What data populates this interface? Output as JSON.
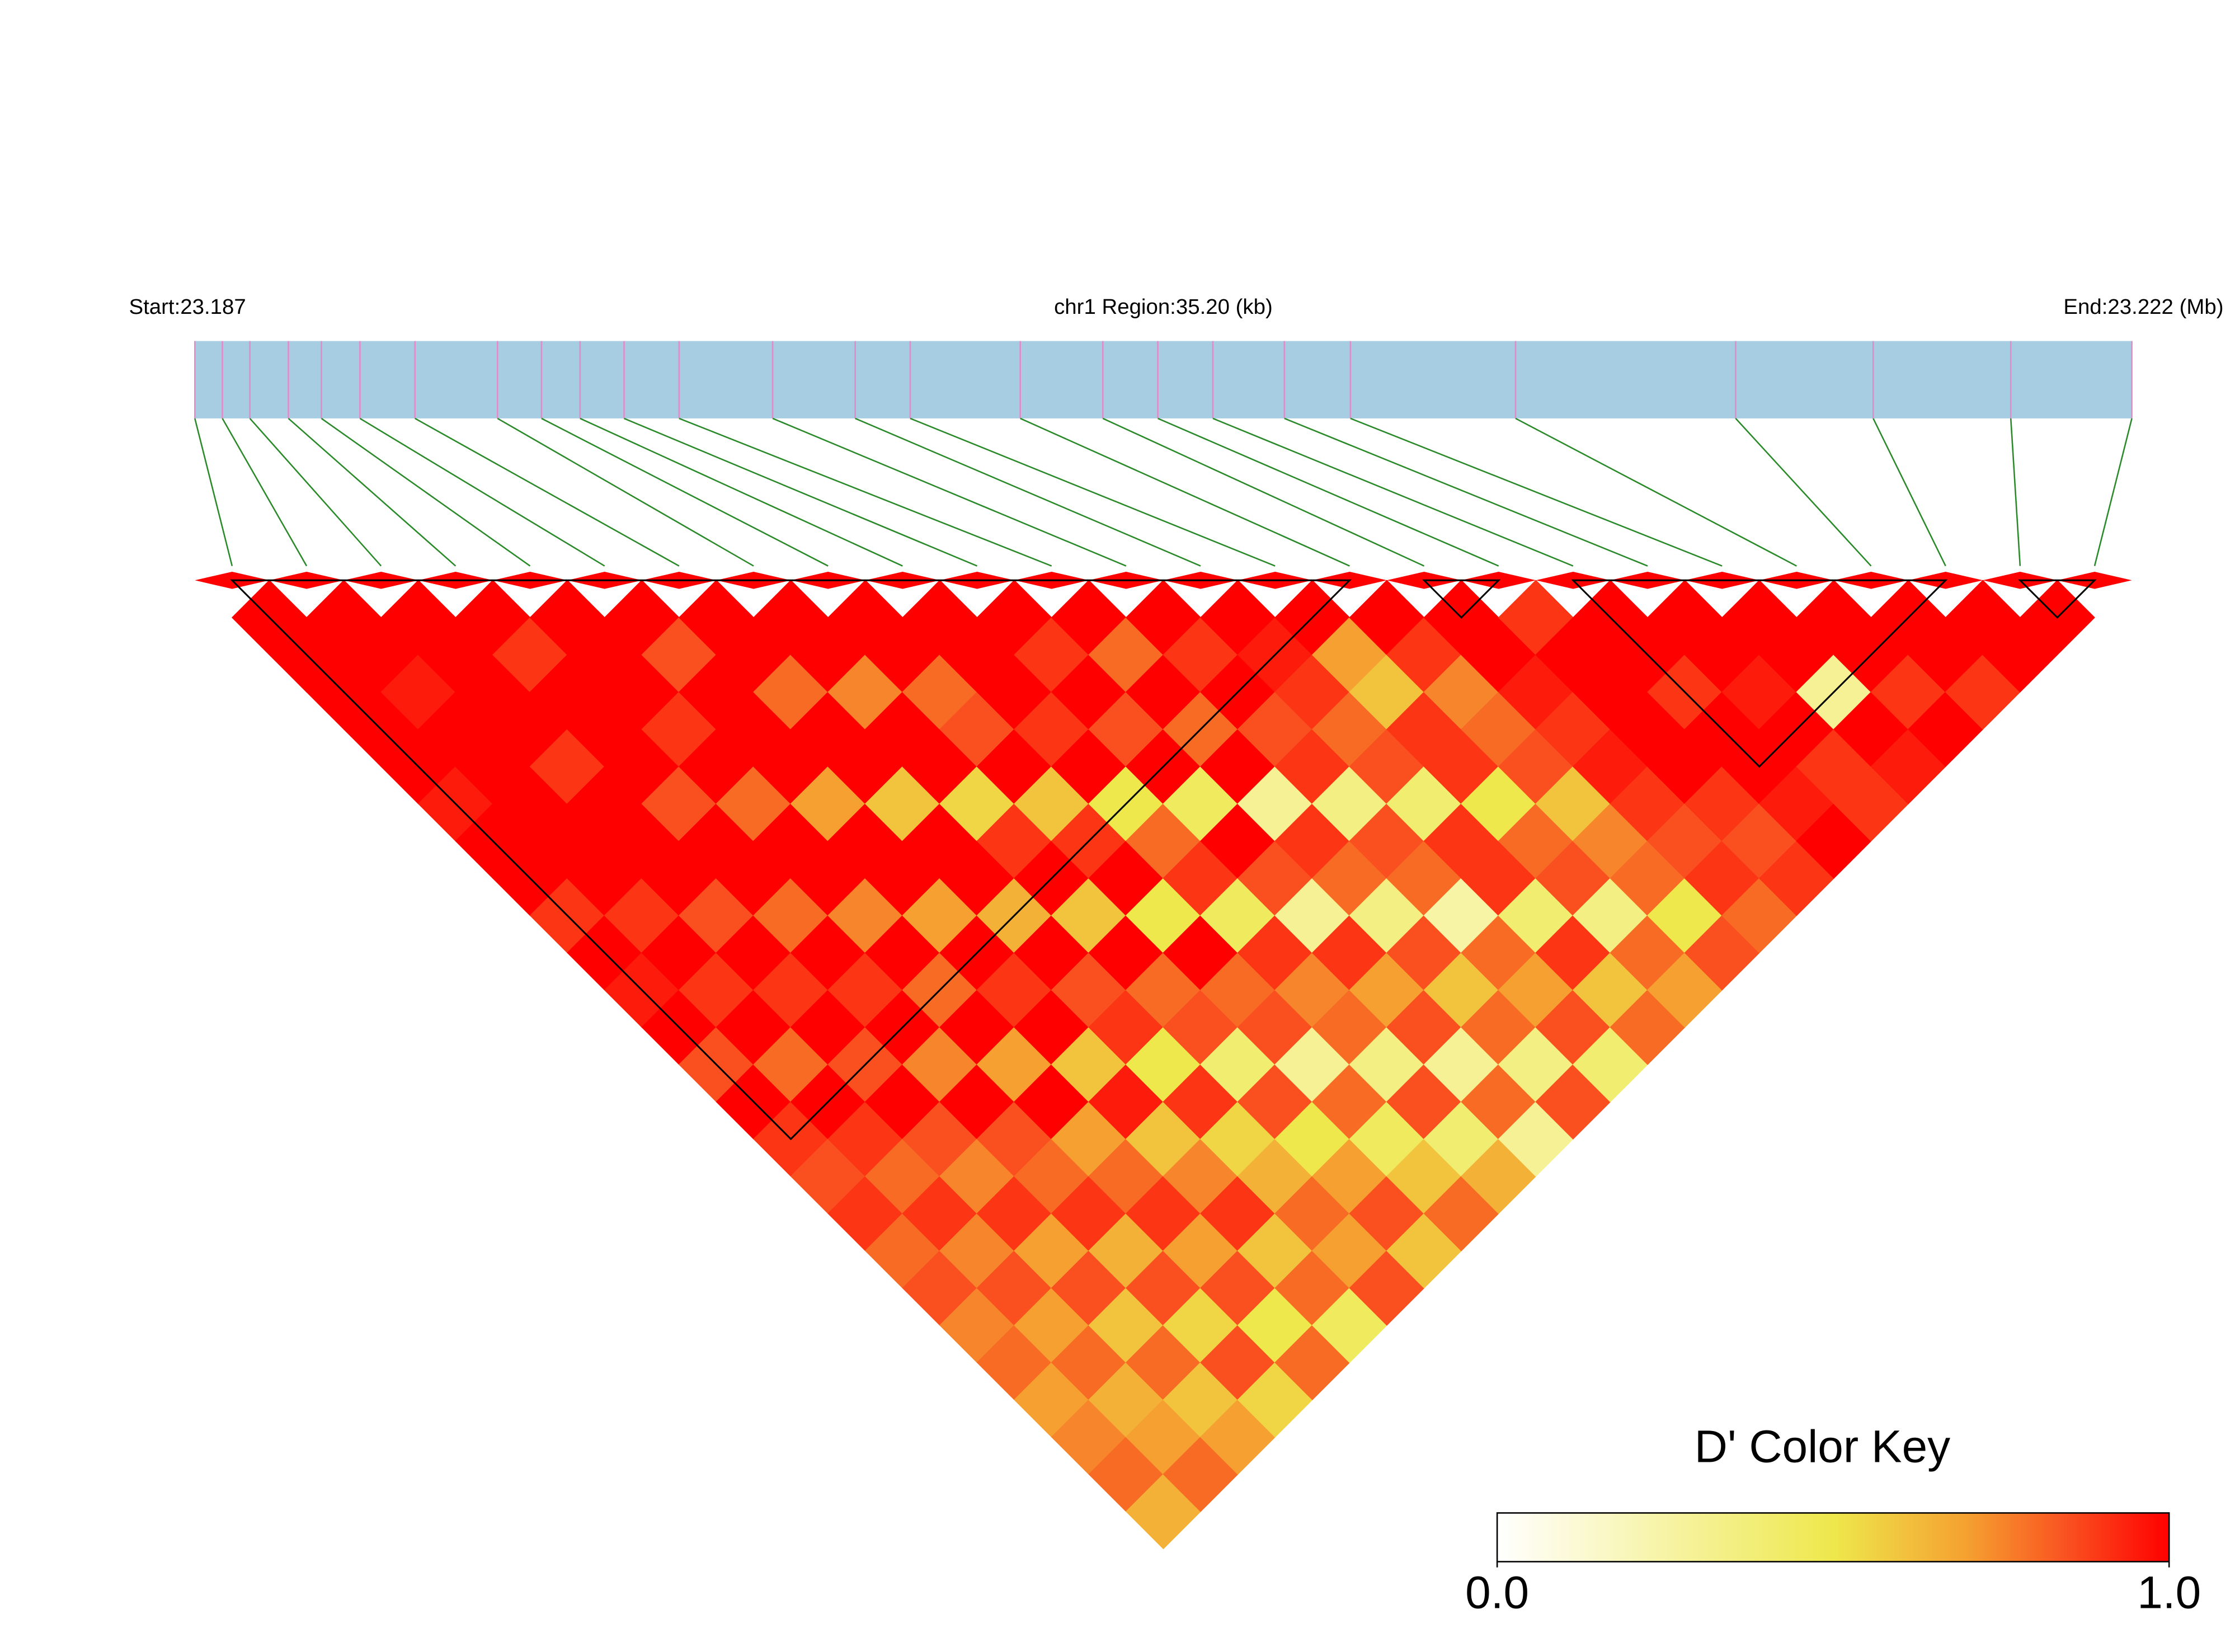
{
  "chart_data": {
    "type": "ld-heatmap",
    "start_label": "Start:23.187",
    "region_label": "chr1 Region:35.20 (kb)",
    "end_label": "End:23.222 (Mb)",
    "key_title": "D' Color Key",
    "key_ticks": [
      {
        "value": 0,
        "label": "0.0"
      },
      {
        "value": 1,
        "label": "1.0"
      }
    ],
    "color_stops": [
      {
        "value": 0,
        "color": "#ffffff"
      },
      {
        "value": 0.5,
        "color": "#eee84c"
      },
      {
        "value": 0.7,
        "color": "#f5a030"
      },
      {
        "value": 0.85,
        "color": "#fa5020"
      },
      {
        "value": 1,
        "color": "#ff0000"
      }
    ],
    "bar_color": "#a6cde2",
    "snp_tick_color": "#e38ac8",
    "connector_color": "#2a8a2a",
    "snp_positions": [
      23.187,
      23.1875,
      23.188,
      23.1887,
      23.1893,
      23.19,
      23.191,
      23.1925,
      23.1933,
      23.194,
      23.1948,
      23.1958,
      23.1975,
      23.199,
      23.2,
      23.202,
      23.2035,
      23.2045,
      23.2055,
      23.2068,
      23.208,
      23.211,
      23.215,
      23.2175,
      23.22,
      23.2222
    ],
    "blocks": [
      [
        0,
        15
      ],
      [
        16,
        17
      ],
      [
        18,
        23
      ],
      [
        24,
        25
      ]
    ],
    "dprime": [
      [
        1
      ],
      [
        1,
        1
      ],
      [
        1,
        1,
        1
      ],
      [
        1,
        0.95,
        1,
        1
      ],
      [
        1,
        1,
        1,
        0.9,
        1
      ],
      [
        0.95,
        1,
        1,
        1,
        1,
        1
      ],
      [
        1,
        1,
        0.9,
        1,
        1,
        0.85,
        1
      ],
      [
        1,
        1,
        1,
        1,
        0.9,
        1,
        1,
        1
      ],
      [
        0.9,
        1,
        1,
        0.85,
        1,
        1,
        0.8,
        1,
        1
      ],
      [
        1,
        0.9,
        1,
        1,
        0.8,
        1,
        1,
        0.75,
        1,
        1
      ],
      [
        0.95,
        1,
        0.85,
        1,
        1,
        0.7,
        1,
        1,
        0.8,
        1,
        1
      ],
      [
        1,
        0.9,
        1,
        0.8,
        1,
        1,
        0.6,
        1,
        0.85,
        1,
        0.9,
        1
      ],
      [
        0.85,
        1,
        0.9,
        1,
        0.75,
        1,
        1,
        0.55,
        1,
        0.9,
        1,
        0.8,
        1
      ],
      [
        1,
        0.8,
        1,
        0.9,
        1,
        0.7,
        1,
        0.9,
        0.6,
        1,
        0.85,
        1,
        0.9,
        1
      ],
      [
        0.9,
        1,
        0.85,
        1,
        0.8,
        1,
        0.65,
        1,
        0.9,
        0.5,
        1,
        0.8,
        1,
        0.95,
        1
      ],
      [
        0.85,
        0.9,
        1,
        0.75,
        1,
        0.9,
        1,
        0.6,
        1,
        0.8,
        0.45,
        1,
        0.85,
        0.9,
        0.7,
        1
      ],
      [
        0.9,
        0.8,
        0.85,
        1,
        0.7,
        1,
        0.85,
        1,
        0.5,
        0.9,
        1,
        0.3,
        0.9,
        0.8,
        0.6,
        0.9,
        1
      ],
      [
        0.8,
        0.9,
        0.75,
        0.85,
        1,
        0.6,
        0.9,
        0.8,
        1,
        0.45,
        0.85,
        0.9,
        0.35,
        0.85,
        0.9,
        0.75,
        1,
        0.9
      ],
      [
        0.85,
        0.75,
        0.9,
        0.8,
        0.7,
        0.95,
        0.5,
        0.85,
        0.8,
        0.9,
        0.3,
        0.8,
        0.85,
        0.4,
        0.9,
        0.8,
        0.95,
        1,
        1
      ],
      [
        0.75,
        0.85,
        0.7,
        0.9,
        0.8,
        0.6,
        0.9,
        0.4,
        0.85,
        0.75,
        0.9,
        0.35,
        0.8,
        0.9,
        0.5,
        0.85,
        0.9,
        1,
        1,
        1
      ],
      [
        0.8,
        0.7,
        0.85,
        0.65,
        0.9,
        0.75,
        0.55,
        0.85,
        0.3,
        0.8,
        0.7,
        0.85,
        0.25,
        0.9,
        0.8,
        0.6,
        0.95,
        1,
        0.9,
        1,
        1
      ],
      [
        0.7,
        0.8,
        0.6,
        0.85,
        0.7,
        0.9,
        0.65,
        0.5,
        0.8,
        0.35,
        0.85,
        0.6,
        0.8,
        0.4,
        0.85,
        0.75,
        0.9,
        1,
        1,
        0.95,
        1,
        1
      ],
      [
        0.75,
        0.65,
        0.8,
        0.55,
        0.85,
        0.6,
        0.8,
        0.7,
        0.45,
        0.85,
        0.3,
        0.8,
        0.7,
        0.9,
        0.35,
        0.8,
        0.85,
        0.9,
        1,
        1,
        0.3,
        1,
        1
      ],
      [
        0.8,
        0.7,
        0.6,
        0.85,
        0.5,
        0.8,
        0.7,
        0.85,
        0.6,
        0.4,
        0.8,
        0.35,
        0.85,
        0.6,
        0.8,
        0.5,
        0.9,
        0.85,
        0.95,
        0.9,
        1,
        0.9,
        1,
        1
      ],
      [
        0.65,
        0.8,
        0.7,
        0.55,
        0.8,
        0.45,
        0.85,
        0.6,
        0.8,
        0.65,
        0.3,
        0.85,
        0.4,
        0.8,
        0.7,
        0.85,
        0.8,
        0.9,
        1,
        0.9,
        0.95,
        1,
        0.9,
        1,
        1
      ]
    ]
  }
}
